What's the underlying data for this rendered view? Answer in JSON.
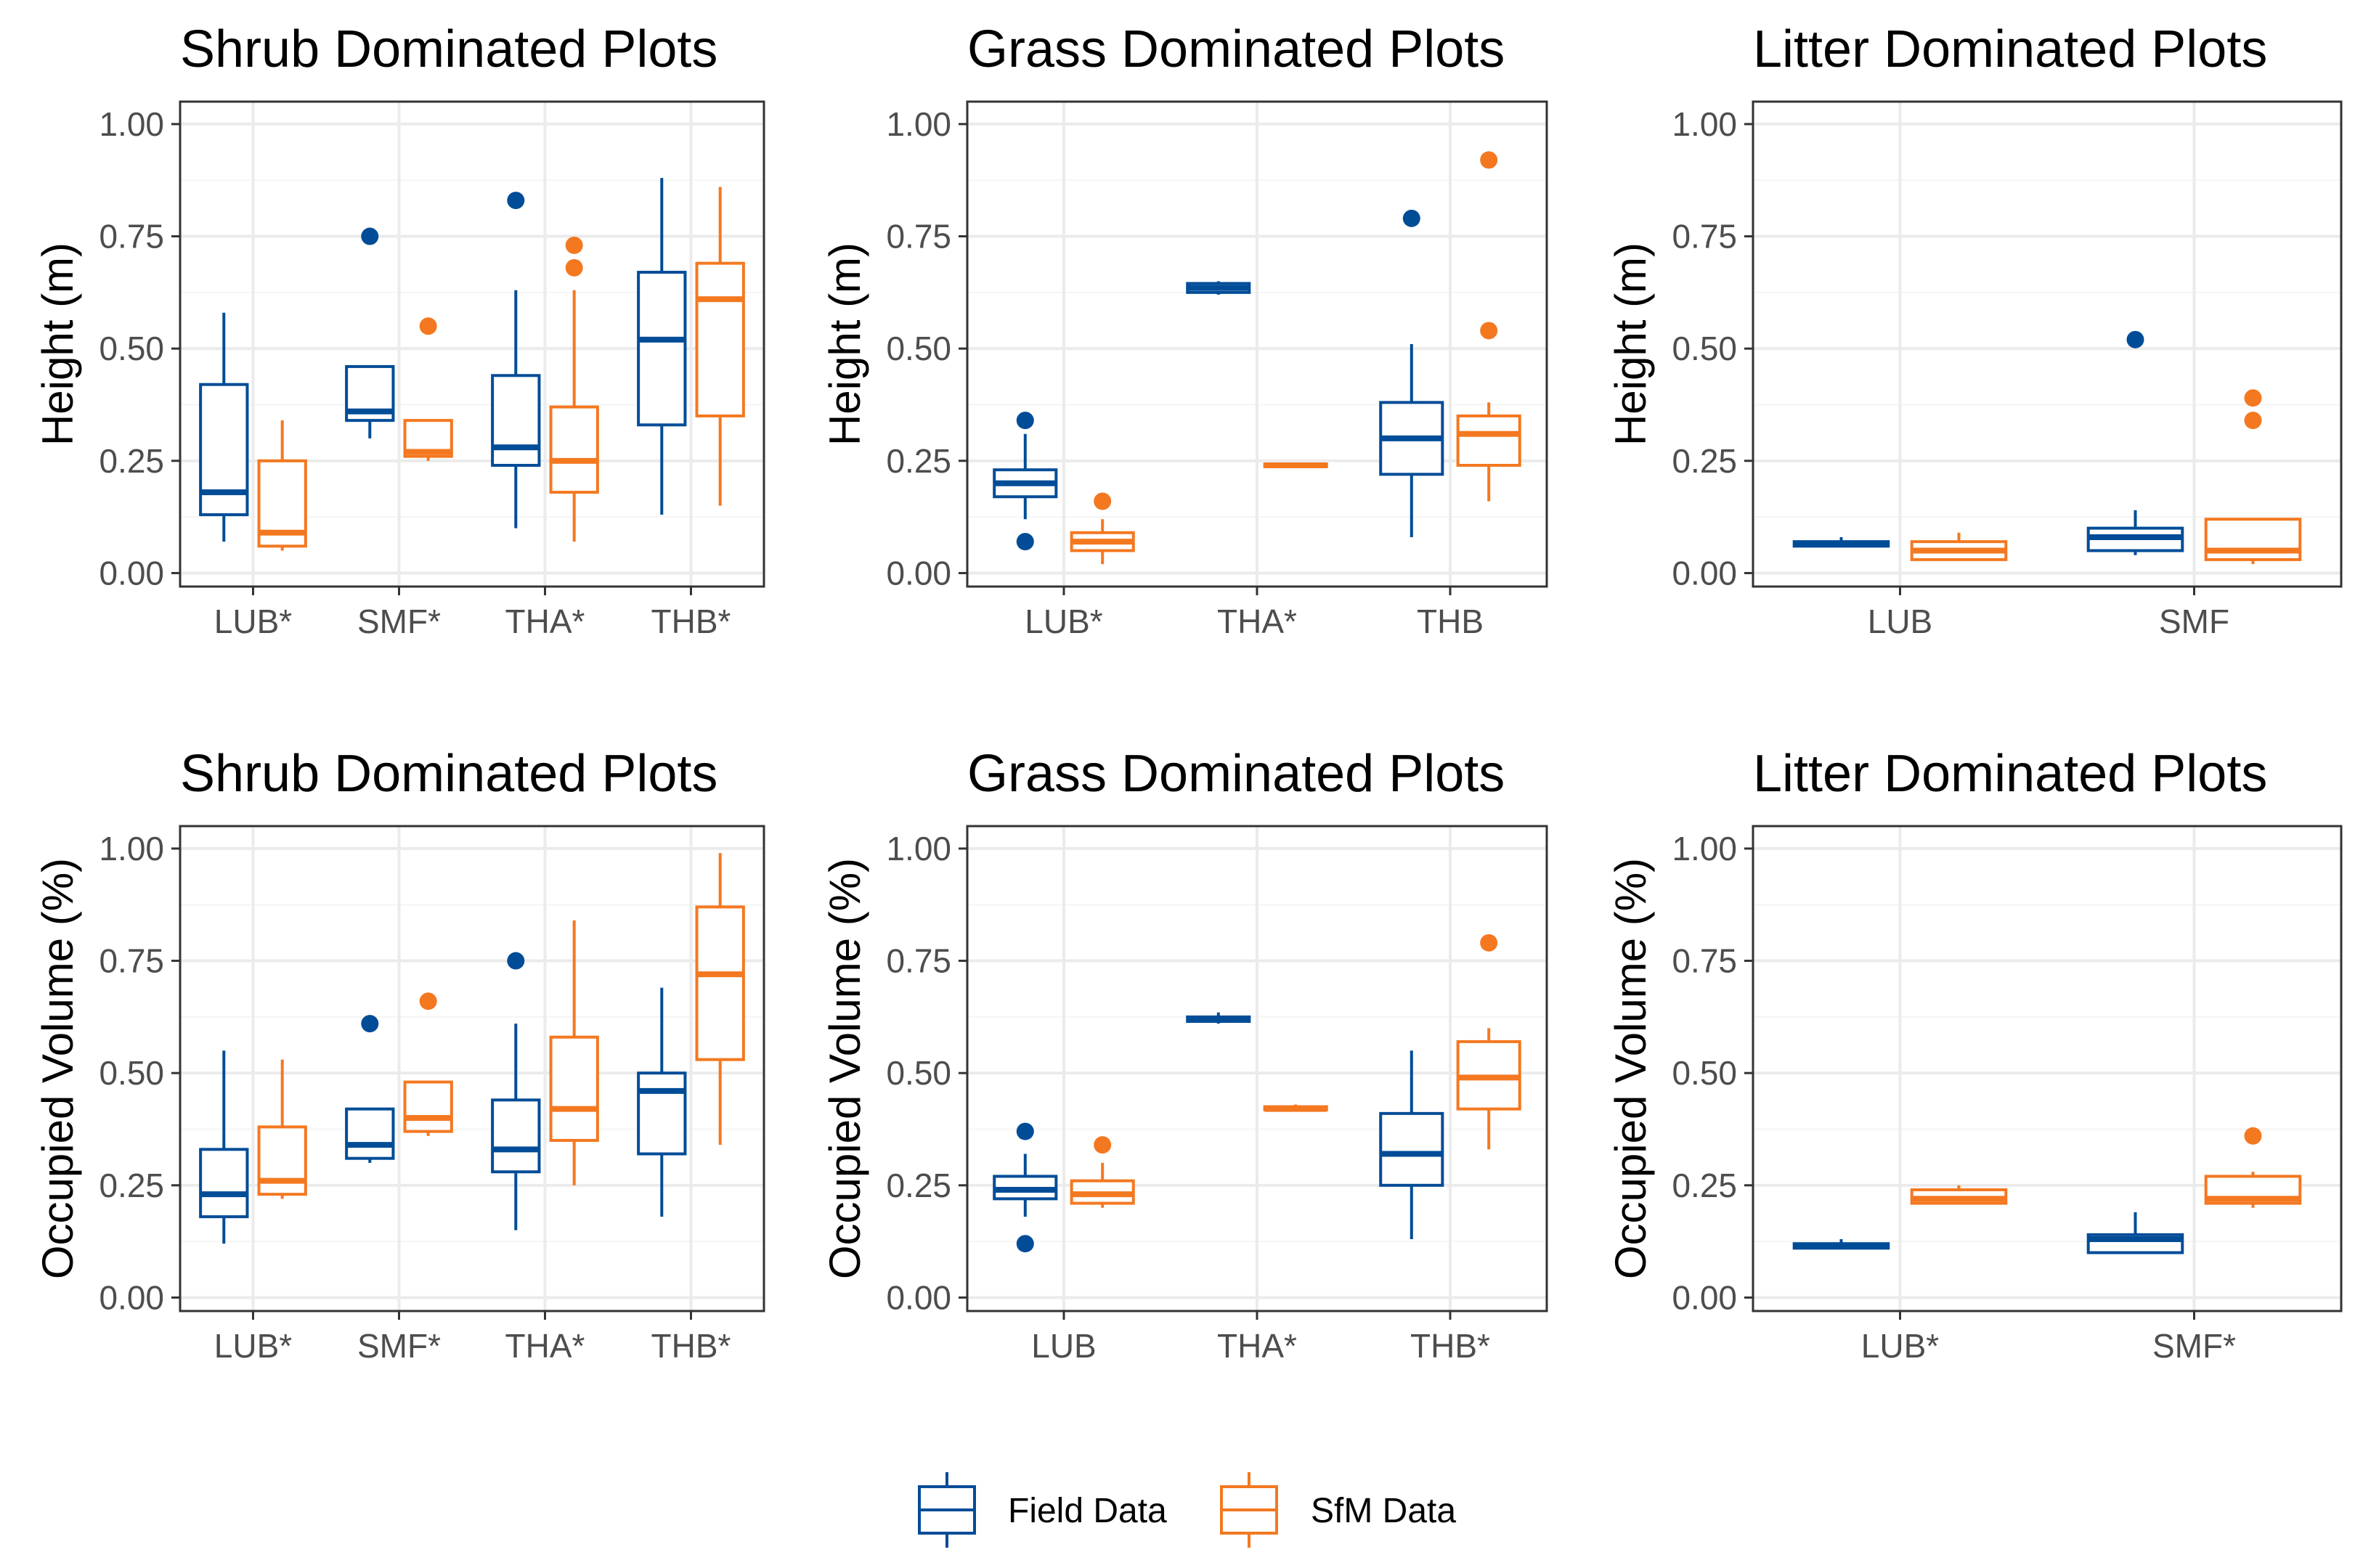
{
  "colors": {
    "field": "#004c97",
    "sfm": "#f47820",
    "grid_major": "#ebebeb",
    "grid_minor": "#f5f5f5",
    "border": "#333333",
    "tick_text": "#4d4d4d"
  },
  "legend": {
    "field_label": "Field Data",
    "sfm_label": "SfM Data"
  },
  "chart_data": [
    {
      "id": "shrub-height",
      "type": "boxplot",
      "title": "Shrub Dominated Plots",
      "xlabel": "",
      "ylabel": "Height (m)",
      "ylim": [
        -0.03,
        1.05
      ],
      "yticks": [
        "0.00",
        "0.25",
        "0.50",
        "0.75",
        "1.00"
      ],
      "grid": true,
      "categories": [
        "LUB*",
        "SMF*",
        "THA*",
        "THB*"
      ],
      "series": [
        {
          "name": "Field Data",
          "boxes": [
            {
              "min": 0.07,
              "q1": 0.13,
              "median": 0.18,
              "q3": 0.42,
              "max": 0.58,
              "outliers": []
            },
            {
              "min": 0.3,
              "q1": 0.34,
              "median": 0.36,
              "q3": 0.46,
              "max": 0.46,
              "outliers": [
                0.75
              ]
            },
            {
              "min": 0.1,
              "q1": 0.24,
              "median": 0.28,
              "q3": 0.44,
              "max": 0.63,
              "outliers": [
                0.83
              ]
            },
            {
              "min": 0.13,
              "q1": 0.33,
              "median": 0.52,
              "q3": 0.67,
              "max": 0.88,
              "outliers": []
            }
          ]
        },
        {
          "name": "SfM Data",
          "boxes": [
            {
              "min": 0.05,
              "q1": 0.06,
              "median": 0.09,
              "q3": 0.25,
              "max": 0.34,
              "outliers": []
            },
            {
              "min": 0.25,
              "q1": 0.26,
              "median": 0.27,
              "q3": 0.34,
              "max": 0.34,
              "outliers": [
                0.55
              ]
            },
            {
              "min": 0.07,
              "q1": 0.18,
              "median": 0.25,
              "q3": 0.37,
              "max": 0.63,
              "outliers": [
                0.68,
                0.73
              ]
            },
            {
              "min": 0.15,
              "q1": 0.35,
              "median": 0.61,
              "q3": 0.69,
              "max": 0.86,
              "outliers": []
            }
          ]
        }
      ]
    },
    {
      "id": "grass-height",
      "type": "boxplot",
      "title": "Grass Dominated Plots",
      "xlabel": "",
      "ylabel": "Height (m)",
      "ylim": [
        -0.03,
        1.05
      ],
      "yticks": [
        "0.00",
        "0.25",
        "0.50",
        "0.75",
        "1.00"
      ],
      "grid": true,
      "categories": [
        "LUB*",
        "THA*",
        "THB"
      ],
      "series": [
        {
          "name": "Field Data",
          "boxes": [
            {
              "min": 0.12,
              "q1": 0.17,
              "median": 0.2,
              "q3": 0.23,
              "max": 0.31,
              "outliers": [
                0.07,
                0.34
              ]
            },
            {
              "min": 0.62,
              "q1": 0.625,
              "median": 0.635,
              "q3": 0.645,
              "max": 0.65,
              "outliers": []
            },
            {
              "min": 0.08,
              "q1": 0.22,
              "median": 0.3,
              "q3": 0.38,
              "max": 0.51,
              "outliers": [
                0.79
              ]
            }
          ]
        },
        {
          "name": "SfM Data",
          "boxes": [
            {
              "min": 0.02,
              "q1": 0.05,
              "median": 0.07,
              "q3": 0.09,
              "max": 0.12,
              "outliers": [
                0.16
              ]
            },
            {
              "min": 0.235,
              "q1": 0.237,
              "median": 0.24,
              "q3": 0.243,
              "max": 0.245,
              "outliers": []
            },
            {
              "min": 0.16,
              "q1": 0.24,
              "median": 0.31,
              "q3": 0.35,
              "max": 0.38,
              "outliers": [
                0.54,
                0.92
              ]
            }
          ]
        }
      ]
    },
    {
      "id": "litter-height",
      "type": "boxplot",
      "title": "Litter Dominated Plots",
      "xlabel": "",
      "ylabel": "Height (m)",
      "ylim": [
        -0.03,
        1.05
      ],
      "yticks": [
        "0.00",
        "0.25",
        "0.50",
        "0.75",
        "1.00"
      ],
      "grid": true,
      "categories": [
        "LUB",
        "SMF"
      ],
      "series": [
        {
          "name": "Field Data",
          "boxes": [
            {
              "min": 0.06,
              "q1": 0.06,
              "median": 0.065,
              "q3": 0.07,
              "max": 0.08,
              "outliers": []
            },
            {
              "min": 0.04,
              "q1": 0.05,
              "median": 0.08,
              "q3": 0.1,
              "max": 0.14,
              "outliers": [
                0.52
              ]
            }
          ]
        },
        {
          "name": "SfM Data",
          "boxes": [
            {
              "min": 0.03,
              "q1": 0.03,
              "median": 0.05,
              "q3": 0.07,
              "max": 0.09,
              "outliers": []
            },
            {
              "min": 0.02,
              "q1": 0.03,
              "median": 0.05,
              "q3": 0.12,
              "max": 0.12,
              "outliers": [
                0.34,
                0.39
              ]
            }
          ]
        }
      ]
    },
    {
      "id": "shrub-volume",
      "type": "boxplot",
      "title": "Shrub Dominated Plots",
      "xlabel": "",
      "ylabel": "Occupied Volume (%)",
      "ylim": [
        -0.03,
        1.05
      ],
      "yticks": [
        "0.00",
        "0.25",
        "0.50",
        "0.75",
        "1.00"
      ],
      "grid": true,
      "categories": [
        "LUB*",
        "SMF*",
        "THA*",
        "THB*"
      ],
      "series": [
        {
          "name": "Field Data",
          "boxes": [
            {
              "min": 0.12,
              "q1": 0.18,
              "median": 0.23,
              "q3": 0.33,
              "max": 0.55,
              "outliers": []
            },
            {
              "min": 0.3,
              "q1": 0.31,
              "median": 0.34,
              "q3": 0.42,
              "max": 0.42,
              "outliers": [
                0.61
              ]
            },
            {
              "min": 0.15,
              "q1": 0.28,
              "median": 0.33,
              "q3": 0.44,
              "max": 0.61,
              "outliers": [
                0.75
              ]
            },
            {
              "min": 0.18,
              "q1": 0.32,
              "median": 0.46,
              "q3": 0.5,
              "max": 0.69,
              "outliers": []
            }
          ]
        },
        {
          "name": "SfM Data",
          "boxes": [
            {
              "min": 0.22,
              "q1": 0.23,
              "median": 0.26,
              "q3": 0.38,
              "max": 0.53,
              "outliers": []
            },
            {
              "min": 0.36,
              "q1": 0.37,
              "median": 0.4,
              "q3": 0.48,
              "max": 0.48,
              "outliers": [
                0.66
              ]
            },
            {
              "min": 0.25,
              "q1": 0.35,
              "median": 0.42,
              "q3": 0.58,
              "max": 0.84,
              "outliers": []
            },
            {
              "min": 0.34,
              "q1": 0.53,
              "median": 0.72,
              "q3": 0.87,
              "max": 0.99,
              "outliers": []
            }
          ]
        }
      ]
    },
    {
      "id": "grass-volume",
      "type": "boxplot",
      "title": "Grass Dominated Plots",
      "xlabel": "",
      "ylabel": "Occupied Volume (%)",
      "ylim": [
        -0.03,
        1.05
      ],
      "yticks": [
        "0.00",
        "0.25",
        "0.50",
        "0.75",
        "1.00"
      ],
      "grid": true,
      "categories": [
        "LUB",
        "THA*",
        "THB*"
      ],
      "series": [
        {
          "name": "Field Data",
          "boxes": [
            {
              "min": 0.18,
              "q1": 0.22,
              "median": 0.24,
              "q3": 0.27,
              "max": 0.32,
              "outliers": [
                0.12,
                0.37
              ]
            },
            {
              "min": 0.61,
              "q1": 0.615,
              "median": 0.62,
              "q3": 0.625,
              "max": 0.635,
              "outliers": []
            },
            {
              "min": 0.13,
              "q1": 0.25,
              "median": 0.32,
              "q3": 0.41,
              "max": 0.55,
              "outliers": []
            }
          ]
        },
        {
          "name": "SfM Data",
          "boxes": [
            {
              "min": 0.2,
              "q1": 0.21,
              "median": 0.23,
              "q3": 0.26,
              "max": 0.3,
              "outliers": [
                0.34
              ]
            },
            {
              "min": 0.415,
              "q1": 0.418,
              "median": 0.42,
              "q3": 0.425,
              "max": 0.43,
              "outliers": []
            },
            {
              "min": 0.33,
              "q1": 0.42,
              "median": 0.49,
              "q3": 0.57,
              "max": 0.6,
              "outliers": [
                0.79
              ]
            }
          ]
        }
      ]
    },
    {
      "id": "litter-volume",
      "type": "boxplot",
      "title": "Litter Dominated Plots",
      "xlabel": "",
      "ylabel": "Occupied Volume (%)",
      "ylim": [
        -0.03,
        1.05
      ],
      "yticks": [
        "0.00",
        "0.25",
        "0.50",
        "0.75",
        "1.00"
      ],
      "grid": true,
      "categories": [
        "LUB*",
        "SMF*"
      ],
      "series": [
        {
          "name": "Field Data",
          "boxes": [
            {
              "min": 0.11,
              "q1": 0.11,
              "median": 0.115,
              "q3": 0.12,
              "max": 0.13,
              "outliers": []
            },
            {
              "min": 0.1,
              "q1": 0.1,
              "median": 0.13,
              "q3": 0.14,
              "max": 0.19,
              "outliers": []
            }
          ]
        },
        {
          "name": "SfM Data",
          "boxes": [
            {
              "min": 0.21,
              "q1": 0.21,
              "median": 0.22,
              "q3": 0.24,
              "max": 0.25,
              "outliers": []
            },
            {
              "min": 0.2,
              "q1": 0.21,
              "median": 0.22,
              "q3": 0.27,
              "max": 0.28,
              "outliers": [
                0.36
              ]
            }
          ]
        }
      ]
    }
  ]
}
